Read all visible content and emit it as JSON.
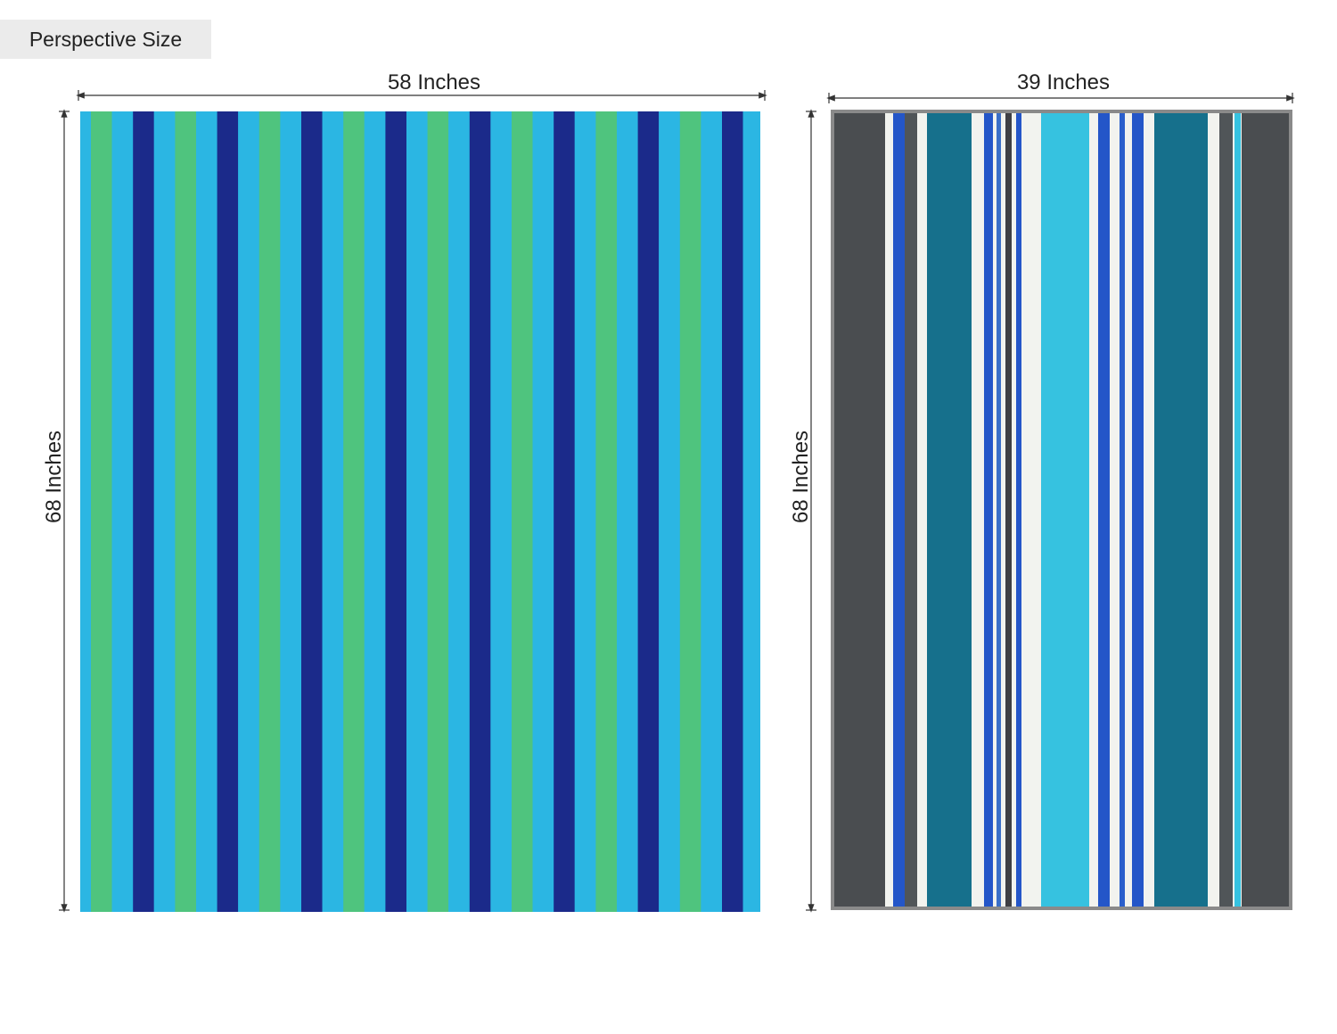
{
  "header": {
    "title": "Perspective Size"
  },
  "towels": [
    {
      "width_label": "58 Inches",
      "height_label": "68 Inches"
    },
    {
      "width_label": "39 Inches",
      "height_label": "68 Inches"
    }
  ]
}
